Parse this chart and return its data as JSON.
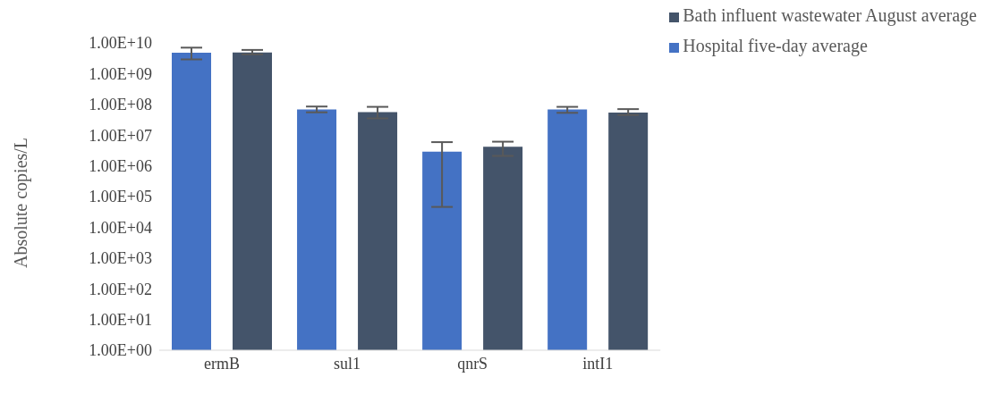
{
  "chart_data": {
    "type": "bar",
    "ylabel": "Absolute copies/L",
    "categories": [
      "ermB",
      "sul1",
      "qnrS",
      "intI1"
    ],
    "series": [
      {
        "name": "Hospital five-day average",
        "color": "#4472c4",
        "values": [
          4800000000.0,
          68000000.0,
          2900000.0,
          68000000.0
        ],
        "errors": [
          [
            2900000000.0,
            7000000000.0
          ],
          [
            55000000.0,
            85000000.0
          ],
          [
            46000.0,
            5900000.0
          ],
          [
            53000000.0,
            83000000.0
          ]
        ]
      },
      {
        "name": "Bath influent wastewater August average",
        "color": "#44546a",
        "values": [
          4900000000.0,
          56000000.0,
          4200000.0,
          54000000.0
        ],
        "errors": [
          [
            4200000000.0,
            5900000000.0
          ],
          [
            35000000.0,
            83000000.0
          ],
          [
            2100000.0,
            6100000.0
          ],
          [
            45000000.0,
            70000000.0
          ]
        ]
      }
    ],
    "log": "y",
    "ylim": [
      1,
      10000000000.0
    ],
    "yticks": [
      {
        "value": 1,
        "label": "1.00E+00"
      },
      {
        "value": 10,
        "label": "1.00E+01"
      },
      {
        "value": 100,
        "label": "1.00E+02"
      },
      {
        "value": 1000,
        "label": "1.00E+03"
      },
      {
        "value": 10000,
        "label": "1.00E+04"
      },
      {
        "value": 100000,
        "label": "1.00E+05"
      },
      {
        "value": 1000000,
        "label": "1.00E+06"
      },
      {
        "value": 10000000,
        "label": "1.00E+07"
      },
      {
        "value": 100000000,
        "label": "1.00E+08"
      },
      {
        "value": 1000000000,
        "label": "1.00E+09"
      },
      {
        "value": 10000000000,
        "label": "1.00E+10"
      }
    ],
    "grid": false,
    "legend": "top right"
  }
}
